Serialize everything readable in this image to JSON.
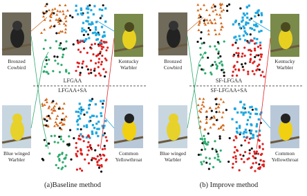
{
  "panels": [
    {
      "top_left": "Bronzed Cowbird",
      "top_right": "Kentucky Warbler",
      "bottom_left": "Blue winged Warbler",
      "bottom_right": "Common Yellowthroat",
      "method_top": "LFGAA",
      "method_bottom": "LFGAA+SA",
      "caption": "(a)Baseline method"
    },
    {
      "top_left": "Bronzed Cowbird",
      "top_right": "Kentucky Warbler",
      "bottom_left": "Blue winged Warbler",
      "bottom_right": "Common Yellowthroat",
      "method_top": "SF-LFGAA",
      "method_bottom": "SF-LFGAA+SA",
      "caption": "(b) Improve method"
    }
  ]
}
